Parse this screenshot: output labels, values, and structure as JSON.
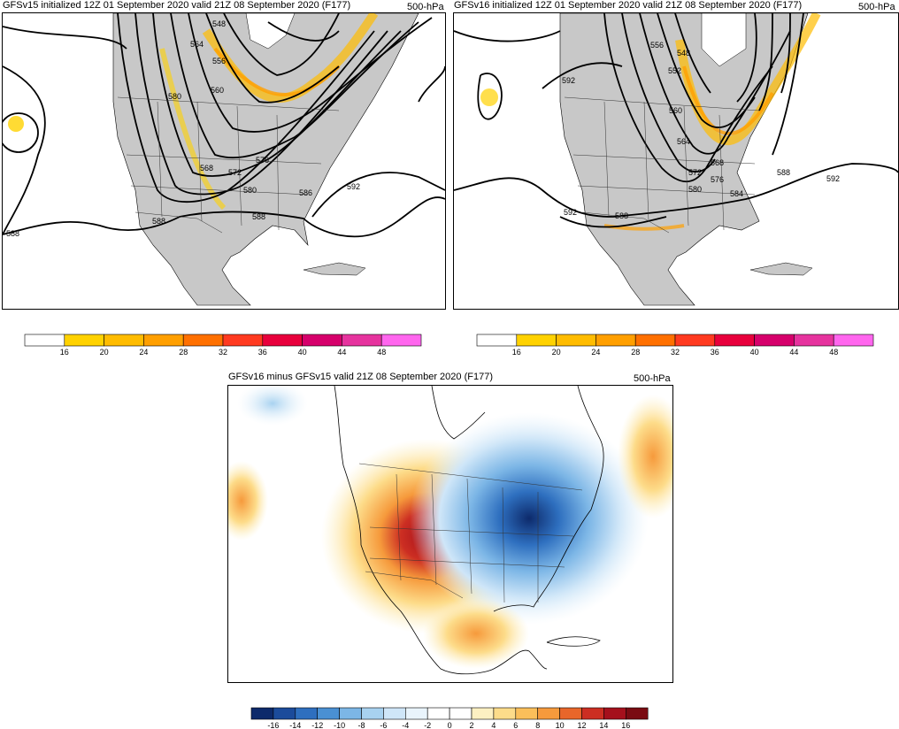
{
  "panels": [
    {
      "title": "GFSv15 initialized 12Z 01 September 2020 valid 21Z 08 September 2020 (F177)",
      "level": "500-hPa",
      "contour_labels": [
        "548",
        "556",
        "564",
        "580",
        "560",
        "568",
        "572",
        "576",
        "580",
        "586",
        "592",
        "588",
        "588",
        "588"
      ]
    },
    {
      "title": "GFSv16 initialized 12Z 01 September 2020 valid 21Z 08 September 2020 (F177)",
      "level": "500-hPa",
      "contour_labels": [
        "556",
        "548",
        "552",
        "560",
        "564",
        "568",
        "572",
        "576",
        "580",
        "584",
        "588",
        "592",
        "592",
        "588",
        "592"
      ]
    }
  ],
  "wind_colorbar": {
    "ticks": [
      "16",
      "20",
      "24",
      "28",
      "32",
      "36",
      "40",
      "44",
      "48"
    ],
    "colors": [
      "#ffffff",
      "#ffd200",
      "#ffbc00",
      "#ff9f00",
      "#ff7000",
      "#ff3a20",
      "#e8003c",
      "#d6006b",
      "#e6339e",
      "#ff66ee"
    ]
  },
  "diff_panel": {
    "title": "GFSv16 minus GFSv15 valid 21Z 08 September 2020 (F177)",
    "level": "500-hPa"
  },
  "diff_colorbar": {
    "ticks": [
      "-16",
      "-14",
      "-12",
      "-10",
      "-8",
      "-6",
      "-4",
      "-2",
      "0",
      "2",
      "4",
      "6",
      "8",
      "10",
      "12",
      "14",
      "16"
    ],
    "colors": [
      "#0d2a6b",
      "#1b4b9b",
      "#2e6fbf",
      "#4a90d3",
      "#7cb6e6",
      "#a8d2f0",
      "#cfe6f8",
      "#e9f4fc",
      "#ffffff",
      "#ffffff",
      "#fdf0c2",
      "#fddc8a",
      "#fbbf5a",
      "#f69a3c",
      "#e8662a",
      "#cc2e22",
      "#a5101c",
      "#7a0b12"
    ]
  }
}
